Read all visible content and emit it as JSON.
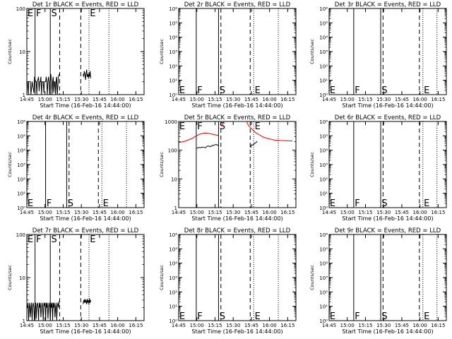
{
  "figure": {
    "x_tick_labels": [
      "14:45",
      "15:00",
      "15:15",
      "15:30",
      "15:45",
      "16:00",
      "16:15"
    ],
    "xlabel": "Start Time (16-Feb-16 14:44:00)",
    "ylabel": "Counts/sec",
    "marker_labels": [
      "E",
      "F",
      "S",
      "E"
    ],
    "colors": {
      "events": "#000000",
      "lld": "#e00000"
    }
  },
  "chart_data": [
    {
      "type": "line",
      "title": "Det 1r BLACK = Events, RED = LLD",
      "ylabel": "Counts/sec",
      "xlabel": "Start Time (16-Feb-16 14:44:00)",
      "x_unit": "minutes after 14:44:00",
      "xlim": [
        0,
        100
      ],
      "yscale": "log",
      "ylim": [
        1,
        100
      ],
      "y_tick_labels": [
        "1",
        "10",
        "100"
      ],
      "vlines": {
        "solid": [
          7,
          20
        ],
        "dashed": [
          28,
          46
        ],
        "dotted": [
          53,
          70
        ]
      },
      "events": [
        [
          0.5,
          2
        ],
        [
          1.3,
          1
        ],
        [
          1.5,
          2
        ],
        [
          3,
          2
        ],
        [
          3.5,
          1
        ],
        [
          4.5,
          2
        ],
        [
          6,
          1.1
        ],
        [
          6.5,
          2.6
        ],
        [
          7.5,
          2
        ],
        [
          8,
          2
        ],
        [
          8.5,
          1
        ],
        [
          9,
          2
        ],
        [
          10,
          2.6
        ],
        [
          10.5,
          1.2
        ],
        [
          11,
          2
        ],
        [
          11.5,
          2
        ],
        [
          12,
          2.6
        ],
        [
          12.5,
          1
        ],
        [
          13,
          2
        ],
        [
          14,
          2
        ],
        [
          14.5,
          1.1
        ],
        [
          15,
          2
        ],
        [
          16,
          2
        ],
        [
          16.5,
          2.6
        ],
        [
          17,
          2
        ],
        [
          17.5,
          1
        ],
        [
          18,
          2
        ],
        [
          18.5,
          2.6
        ],
        [
          19,
          2
        ],
        [
          19.5,
          1
        ],
        [
          20,
          2
        ],
        [
          20.5,
          3
        ],
        [
          21,
          2
        ],
        [
          21.5,
          1
        ],
        [
          22,
          2
        ],
        [
          22.5,
          2.6
        ],
        [
          23,
          1.1
        ],
        [
          23.5,
          2
        ],
        [
          24,
          2
        ],
        [
          24.5,
          1
        ],
        [
          25,
          2.2
        ],
        [
          25.5,
          2.6
        ],
        [
          26,
          1
        ],
        [
          27,
          2.6
        ],
        [
          27.5,
          3
        ]
      ],
      "events2": [
        [
          48,
          3
        ],
        [
          48.5,
          2.6
        ],
        [
          49,
          3.5
        ],
        [
          49.5,
          3
        ],
        [
          50,
          2.2
        ],
        [
          50.5,
          3
        ],
        [
          51,
          3.8
        ],
        [
          51.5,
          2.6
        ],
        [
          52,
          3
        ],
        [
          52.5,
          2.4
        ],
        [
          53,
          3.2
        ],
        [
          53.5,
          2.6
        ],
        [
          54,
          3.5
        ],
        [
          54.5,
          2.4
        ]
      ]
    },
    {
      "type": "line",
      "title": "Det 2r BLACK = Events, RED = LLD",
      "ylabel": "Counts/sec",
      "xlabel": "Start Time (16-Feb-16 14:44:00)",
      "x_unit": "minutes after 14:44:00",
      "xlim": [
        0,
        100
      ],
      "yscale": "log",
      "ylim": [
        1,
        1000000
      ],
      "y_tick_labels": [
        "10⁰",
        "10¹",
        "10²",
        "10³",
        "10⁴",
        "10⁵",
        "10⁶"
      ],
      "vlines": {
        "solid": [
          15,
          34
        ],
        "dashed": [
          36,
          61
        ],
        "dotted": [
          64,
          85
        ]
      }
    },
    {
      "type": "line",
      "title": "Det 3r BLACK = Events, RED = LLD",
      "ylabel": "Counts/sec",
      "xlabel": "Start Time (16-Feb-16 14:44:00)",
      "x_unit": "minutes after 14:44:00",
      "xlim": [
        0,
        100
      ],
      "yscale": "log",
      "ylim": [
        1,
        1000000
      ],
      "y_tick_labels": [
        "10⁰",
        "10¹",
        "10²",
        "10³",
        "10⁴",
        "10⁵",
        "10⁶"
      ],
      "vlines": {
        "solid": [
          21,
          44
        ],
        "dashed": [
          46,
          77
        ],
        "dotted": [
          80,
          92
        ]
      }
    },
    {
      "type": "line",
      "title": "Det 4r BLACK = Events, RED = LLD",
      "ylabel": "Counts/sec",
      "xlabel": "Start Time (16-Feb-16 14:44:00)",
      "x_unit": "minutes after 14:44:00",
      "xlim": [
        0,
        100
      ],
      "yscale": "log",
      "ylim": [
        1,
        1000000
      ],
      "y_tick_labels": [
        "10⁰",
        "10¹",
        "10²",
        "10³",
        "10⁴",
        "10⁵",
        "10⁶"
      ],
      "vlines": {
        "solid": [
          16,
          34
        ],
        "dashed": [
          36,
          61
        ],
        "dotted": [
          64,
          85
        ]
      }
    },
    {
      "type": "line",
      "title": "Det 5r BLACK = Events, RED = LLD",
      "ylabel": "Counts/sec",
      "xlabel": "Start Time (16-Feb-16 14:44:00)",
      "x_unit": "minutes after 14:44:00",
      "xlim": [
        0,
        100
      ],
      "yscale": "log",
      "ylim": [
        1,
        1000
      ],
      "y_tick_labels": [
        "1",
        "10",
        "100",
        "1000"
      ],
      "vlines": {
        "solid": [
          15,
          34
        ],
        "dashed": [
          36,
          61
        ],
        "dotted": [
          64,
          85
        ]
      },
      "events": [
        [
          15,
          115
        ],
        [
          16,
          118
        ],
        [
          17,
          125
        ],
        [
          18,
          122
        ],
        [
          19,
          124
        ],
        [
          20,
          128
        ],
        [
          21,
          126
        ],
        [
          22,
          125
        ],
        [
          23,
          122
        ],
        [
          24,
          135
        ],
        [
          25,
          140
        ],
        [
          26,
          138
        ],
        [
          27,
          132
        ],
        [
          28,
          140
        ],
        [
          29,
          150
        ],
        [
          30,
          145
        ],
        [
          31,
          155
        ],
        [
          32,
          160
        ],
        [
          33,
          150
        ],
        [
          34,
          152
        ]
      ],
      "events2": [
        [
          61,
          130
        ],
        [
          61.5,
          125
        ],
        [
          62,
          155
        ],
        [
          63,
          150
        ],
        [
          64,
          160
        ],
        [
          65,
          175
        ],
        [
          66,
          185
        ],
        [
          67,
          205
        ]
      ],
      "lld": [
        [
          0,
          185
        ],
        [
          3,
          195
        ],
        [
          6,
          210
        ],
        [
          9,
          235
        ],
        [
          12,
          265
        ],
        [
          14,
          300
        ],
        [
          16,
          330
        ],
        [
          18,
          360
        ],
        [
          20,
          380
        ],
        [
          22,
          395
        ],
        [
          24,
          390
        ],
        [
          26,
          380
        ],
        [
          28,
          370
        ],
        [
          30,
          350
        ],
        [
          32,
          340
        ],
        [
          34,
          320
        ]
      ],
      "lld2": [
        [
          37,
          680
        ],
        [
          38,
          900
        ],
        [
          39,
          1000
        ]
      ],
      "lld3": [
        [
          58,
          1000
        ],
        [
          59,
          800
        ],
        [
          60,
          690
        ],
        [
          62,
          560
        ],
        [
          64,
          470
        ],
        [
          66,
          400
        ],
        [
          68,
          360
        ],
        [
          70,
          320
        ],
        [
          72,
          290
        ],
        [
          74,
          270
        ],
        [
          76,
          255
        ],
        [
          78,
          245
        ],
        [
          80,
          232
        ],
        [
          83,
          222
        ],
        [
          86,
          218
        ],
        [
          90,
          215
        ],
        [
          94,
          212
        ],
        [
          97,
          210
        ]
      ]
    },
    {
      "type": "line",
      "title": "Det 6r BLACK = Events, RED = LLD",
      "ylabel": "Counts/sec",
      "xlabel": "Start Time (16-Feb-16 14:44:00)",
      "x_unit": "minutes after 14:44:00",
      "xlim": [
        0,
        100
      ],
      "yscale": "log",
      "ylim": [
        1,
        1000000
      ],
      "y_tick_labels": [
        "10⁰",
        "10¹",
        "10²",
        "10³",
        "10⁴",
        "10⁵",
        "10⁶"
      ],
      "vlines": {
        "solid": [
          21,
          44
        ],
        "dashed": [
          46,
          77
        ],
        "dotted": [
          80,
          92
        ]
      }
    },
    {
      "type": "line",
      "title": "Det 7r BLACK = Events, RED = LLD",
      "ylabel": "Counts/sec",
      "xlabel": "Start Time (16-Feb-16 14:44:00)",
      "x_unit": "minutes after 14:44:00",
      "xlim": [
        0,
        100
      ],
      "yscale": "log",
      "ylim": [
        1,
        100
      ],
      "y_tick_labels": [
        "1",
        "10",
        "100"
      ],
      "vlines": {
        "solid": [
          7,
          20
        ],
        "dashed": [
          28,
          46
        ],
        "dotted": [
          53,
          70
        ]
      },
      "events": [
        [
          0.5,
          2
        ],
        [
          1,
          2.6
        ],
        [
          1.5,
          1
        ],
        [
          2,
          2
        ],
        [
          2.5,
          2.6
        ],
        [
          3,
          1.2
        ],
        [
          3.5,
          2
        ],
        [
          4,
          2.6
        ],
        [
          4.5,
          1
        ],
        [
          5,
          2.2
        ],
        [
          5.5,
          2.6
        ],
        [
          6,
          2
        ],
        [
          6.5,
          1
        ],
        [
          7,
          2
        ],
        [
          7.5,
          2.6
        ],
        [
          8,
          1.1
        ],
        [
          8.5,
          2.2
        ],
        [
          9,
          2.6
        ],
        [
          9.5,
          2
        ],
        [
          10,
          1
        ],
        [
          10.5,
          2.6
        ],
        [
          11,
          2
        ],
        [
          11.5,
          2.6
        ],
        [
          12,
          1.2
        ],
        [
          12.5,
          2
        ],
        [
          13,
          2.6
        ],
        [
          13.5,
          2
        ],
        [
          14,
          1
        ],
        [
          14.5,
          2.6
        ],
        [
          15,
          2.2
        ],
        [
          15.5,
          2.6
        ],
        [
          16,
          1
        ],
        [
          16.5,
          2.6
        ],
        [
          17,
          2
        ],
        [
          17.5,
          2.6
        ],
        [
          18,
          1.1
        ],
        [
          18.5,
          2
        ],
        [
          19,
          2.6
        ],
        [
          19.5,
          2
        ],
        [
          20,
          1
        ],
        [
          20.5,
          2.6
        ],
        [
          21,
          2
        ],
        [
          21.5,
          2.6
        ],
        [
          22,
          1
        ],
        [
          22.5,
          2.6
        ],
        [
          23,
          2
        ],
        [
          23.5,
          2.6
        ],
        [
          24,
          1.2
        ],
        [
          24.5,
          2
        ],
        [
          25,
          2.6
        ],
        [
          25.5,
          1
        ],
        [
          26,
          2.2
        ],
        [
          26.5,
          2.6
        ],
        [
          27,
          2
        ],
        [
          27.5,
          2.8
        ]
      ],
      "events2": [
        [
          48,
          2.4
        ],
        [
          48.5,
          3
        ],
        [
          49,
          2.6
        ],
        [
          49.5,
          3.2
        ],
        [
          50,
          2.6
        ],
        [
          50.5,
          3
        ],
        [
          51,
          2.4
        ],
        [
          51.5,
          3.2
        ],
        [
          52,
          2.6
        ],
        [
          52.5,
          3
        ],
        [
          53,
          2.4
        ],
        [
          53.5,
          3.3
        ],
        [
          54,
          2.6
        ],
        [
          54.5,
          3
        ]
      ]
    },
    {
      "type": "line",
      "title": "Det 8r BLACK = Events, RED = LLD",
      "ylabel": "Counts/sec",
      "xlabel": "Start Time (16-Feb-16 14:44:00)",
      "x_unit": "minutes after 14:44:00",
      "xlim": [
        0,
        100
      ],
      "yscale": "log",
      "ylim": [
        1,
        1000000
      ],
      "y_tick_labels": [
        "10⁰",
        "10¹",
        "10²",
        "10³",
        "10⁴",
        "10⁵",
        "10⁶"
      ],
      "vlines": {
        "solid": [
          15,
          34
        ],
        "dashed": [
          36,
          61
        ],
        "dotted": [
          64,
          85
        ]
      }
    },
    {
      "type": "line",
      "title": "Det 9r BLACK = Events, RED = LLD",
      "ylabel": "Counts/sec",
      "xlabel": "Start Time (16-Feb-16 14:44:00)",
      "x_unit": "minutes after 14:44:00",
      "xlim": [
        0,
        100
      ],
      "yscale": "log",
      "ylim": [
        1,
        1000000
      ],
      "y_tick_labels": [
        "10⁰",
        "10¹",
        "10²",
        "10³",
        "10⁴",
        "10⁵",
        "10⁶"
      ],
      "vlines": {
        "solid": [
          21,
          44
        ],
        "dashed": [
          46,
          77
        ],
        "dotted": [
          80,
          92
        ]
      }
    }
  ]
}
